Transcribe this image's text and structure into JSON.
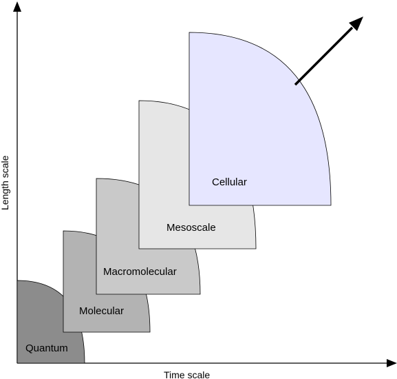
{
  "axes": {
    "x_label": "Time scale",
    "y_label": "Length scale"
  },
  "scales": [
    {
      "id": "quantum",
      "label": "Quantum",
      "fill": "#8c8c8c"
    },
    {
      "id": "molecular",
      "label": "Molecular",
      "fill": "#b3b3b3"
    },
    {
      "id": "macromolecular",
      "label": "Macromolecular",
      "fill": "#c9c9c9"
    },
    {
      "id": "mesoscale",
      "label": "Mesoscale",
      "fill": "#e6e6e6"
    },
    {
      "id": "cellular",
      "label": "Cellular",
      "fill": "#e6e6ff"
    }
  ],
  "colors": {
    "axis": "#000000",
    "outline": "#000000",
    "arrow": "#000000"
  }
}
